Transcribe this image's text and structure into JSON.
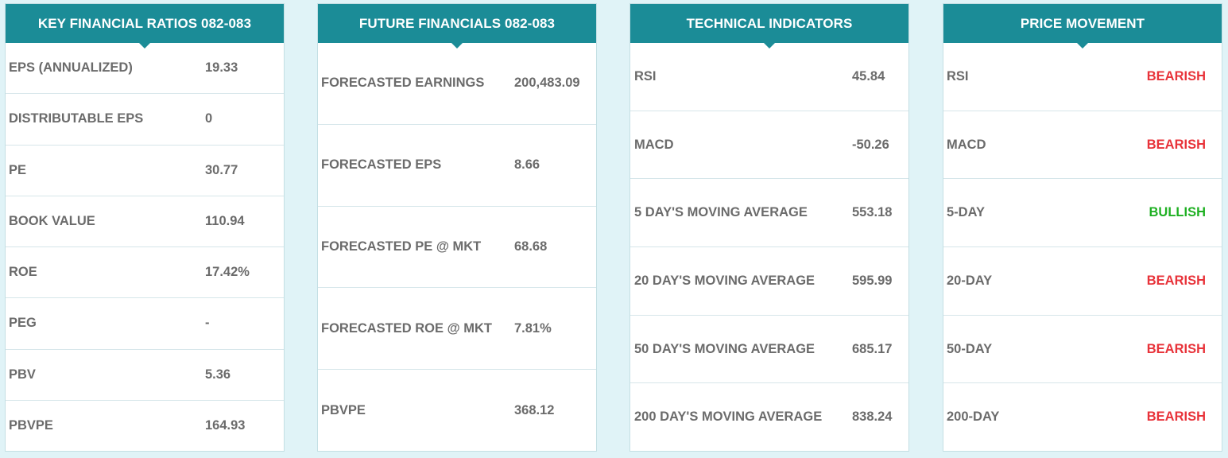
{
  "panels": [
    {
      "title": "KEY FINANCIAL RATIOS 082-083",
      "rows": [
        {
          "label": "EPS (ANNUALIZED)",
          "value": "19.33"
        },
        {
          "label": "DISTRIBUTABLE EPS",
          "value": "0"
        },
        {
          "label": "PE",
          "value": "30.77"
        },
        {
          "label": "BOOK VALUE",
          "value": "110.94"
        },
        {
          "label": "ROE",
          "value": "17.42%"
        },
        {
          "label": "PEG",
          "value": "-"
        },
        {
          "label": "PBV",
          "value": "5.36"
        },
        {
          "label": "PBVPE",
          "value": "164.93"
        }
      ]
    },
    {
      "title": "FUTURE FINANCIALS 082-083",
      "rows": [
        {
          "label": "FORECASTED EARNINGS",
          "value": "200,483.09"
        },
        {
          "label": "FORECASTED EPS",
          "value": "8.66"
        },
        {
          "label": "FORECASTED PE @ MKT",
          "value": "68.68"
        },
        {
          "label": "FORECASTED ROE @ MKT",
          "value": "7.81%"
        },
        {
          "label": "PBVPE",
          "value": "368.12"
        }
      ]
    },
    {
      "title": "TECHNICAL INDICATORS",
      "rows": [
        {
          "label": "RSI",
          "value": "45.84"
        },
        {
          "label": "MACD",
          "value": "-50.26"
        },
        {
          "label": "5 DAY'S MOVING AVERAGE",
          "value": "553.18"
        },
        {
          "label": "20 DAY'S MOVING AVERAGE",
          "value": "595.99"
        },
        {
          "label": "50 DAY'S MOVING AVERAGE",
          "value": "685.17"
        },
        {
          "label": "200 DAY'S MOVING AVERAGE",
          "value": "838.24"
        }
      ]
    },
    {
      "title": "PRICE MOVEMENT",
      "rows": [
        {
          "label": "RSI",
          "value": "BEARISH",
          "color": "#e8333a"
        },
        {
          "label": "MACD",
          "value": "BEARISH",
          "color": "#e8333a"
        },
        {
          "label": "5-DAY",
          "value": "BULLISH",
          "color": "#1fb023"
        },
        {
          "label": "20-DAY",
          "value": "BEARISH",
          "color": "#e8333a"
        },
        {
          "label": "50-DAY",
          "value": "BEARISH",
          "color": "#e8333a"
        },
        {
          "label": "200-DAY",
          "value": "BEARISH",
          "color": "#e8333a"
        }
      ]
    }
  ],
  "colors": {
    "header": "#1b8c97",
    "background": "#e0f3f7",
    "text": "#6b6b6b",
    "bearish": "#e8333a",
    "bullish": "#1fb023"
  }
}
